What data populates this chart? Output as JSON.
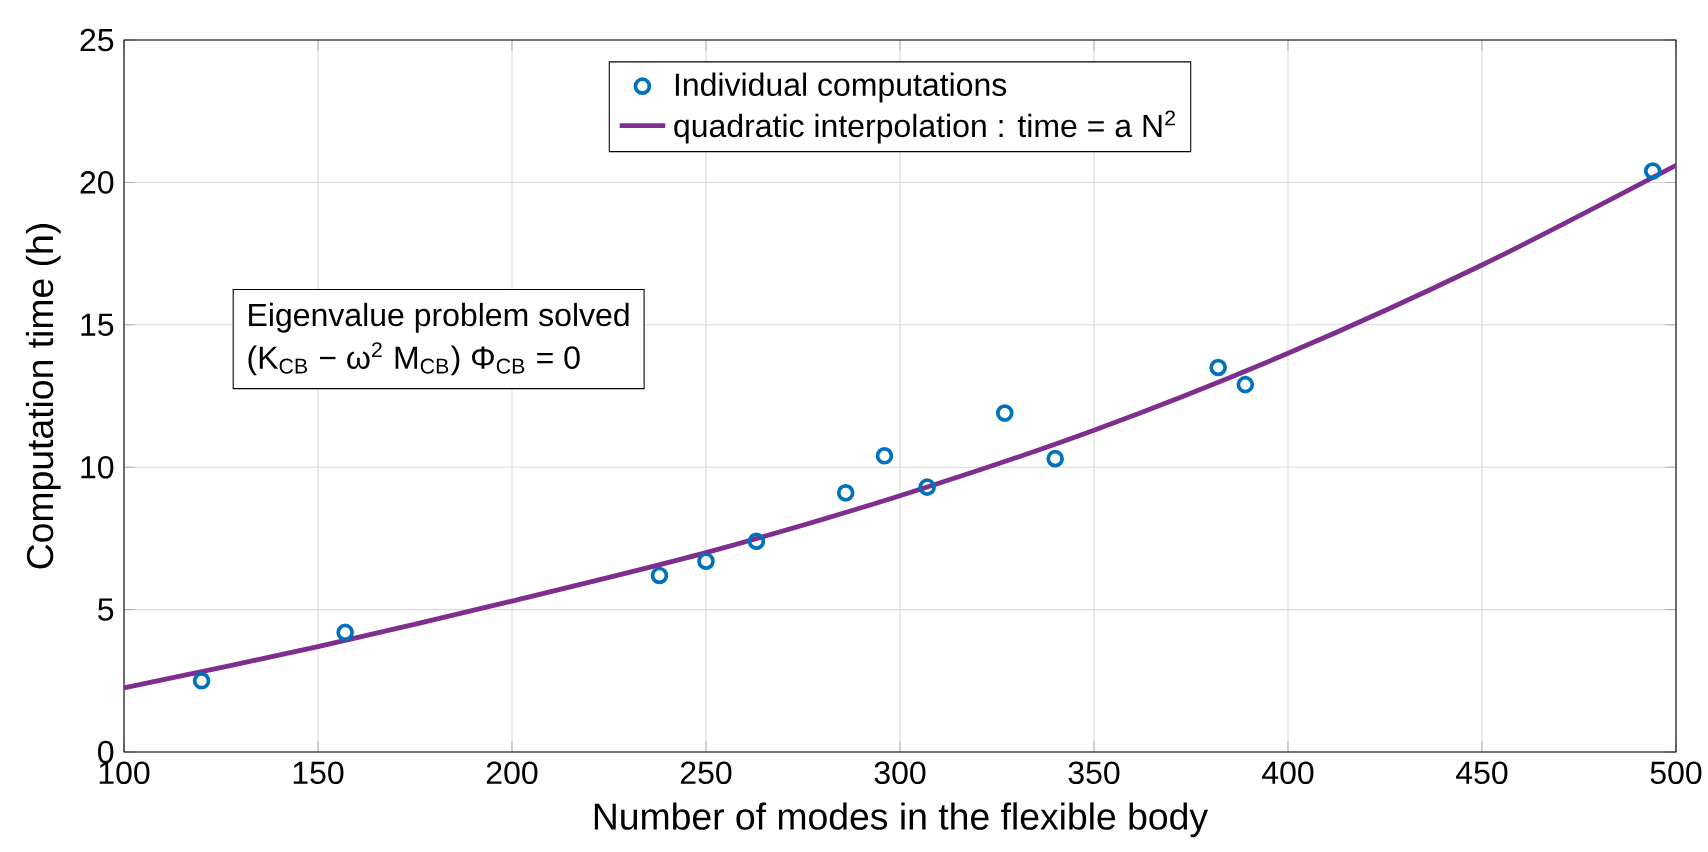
{
  "chart_data": {
    "type": "scatter",
    "xlabel": "Number of modes in the flexible body",
    "ylabel": "Computation time (h)",
    "xlim": [
      100,
      500
    ],
    "ylim": [
      0,
      25
    ],
    "xticks": [
      100,
      150,
      200,
      250,
      300,
      350,
      400,
      450,
      500
    ],
    "yticks": [
      0,
      5,
      10,
      15,
      20,
      25
    ],
    "grid": true,
    "legend": "top",
    "annotations": [
      "Eigenvalue problem solved",
      "(K$_{CB}$ − ω$^{2}$ M$_{CB}$)  Φ$_{CB}$  =  0"
    ],
    "series": [
      {
        "name": "Individual computations",
        "marker": "circle",
        "color": "#0072bd",
        "x": [
          120,
          157,
          238,
          250,
          263,
          286,
          296,
          307,
          327,
          340,
          382,
          389,
          494
        ],
        "values": [
          2.5,
          4.2,
          6.2,
          6.7,
          7.4,
          9.1,
          10.4,
          9.3,
          11.9,
          10.3,
          13.5,
          12.9,
          20.4
        ]
      },
      {
        "name": "quadratic interpolation : time = a N$^{2}$",
        "type": "line",
        "marker": "none",
        "color": "#7e2f8e",
        "x": [
          100,
          150,
          200,
          250,
          300,
          350,
          400,
          450,
          500
        ],
        "values": [
          2.25,
          3.7,
          5.3,
          7.0,
          9.0,
          11.3,
          14.0,
          17.1,
          20.6
        ]
      }
    ]
  }
}
